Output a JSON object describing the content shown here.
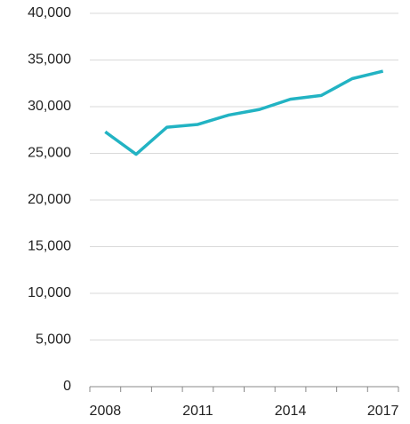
{
  "chart_data": {
    "type": "line",
    "categories": [
      "2008",
      null,
      null,
      "2011",
      null,
      null,
      "2014",
      null,
      null,
      "2017"
    ],
    "series": [
      {
        "color": "#22b3c3",
        "values": [
          27300,
          24900,
          27800,
          28100,
          29100,
          29700,
          30800,
          31200,
          33000,
          33800
        ]
      }
    ],
    "ylim": [
      0,
      40000
    ],
    "yticks": [
      0,
      {
        "value": 5000,
        "label": "5,000"
      },
      {
        "value": 10000,
        "label": "10,000"
      },
      {
        "value": 15000,
        "label": "15,000"
      },
      {
        "value": 20000,
        "label": "20,000"
      },
      {
        "value": 25000,
        "label": "25,000"
      },
      {
        "value": 30000,
        "label": "30,000"
      },
      {
        "value": 35000,
        "label": "35,000"
      },
      {
        "value": 40000,
        "label": "40,000"
      }
    ],
    "grid": true
  }
}
